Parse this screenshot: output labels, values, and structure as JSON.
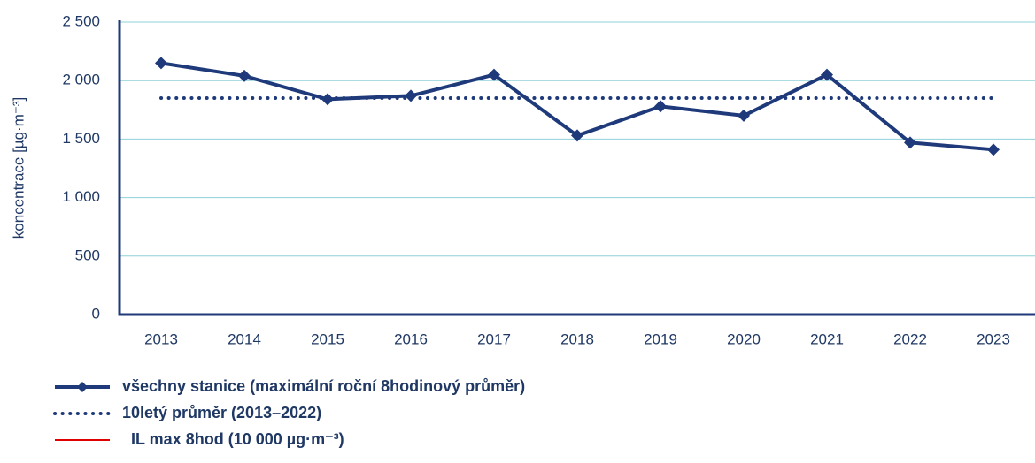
{
  "chart_data": {
    "type": "line",
    "y_label": "koncentrace [µg·m⁻³]",
    "categories": [
      "2013",
      "2014",
      "2015",
      "2016",
      "2017",
      "2018",
      "2019",
      "2020",
      "2021",
      "2022",
      "2023"
    ],
    "series": [
      {
        "name": "všechny stanice (maximální roční 8hodinový průměr)",
        "color": "#1f3a7a",
        "line_style": "solid",
        "marker": "diamond",
        "values": [
          2150,
          2040,
          1840,
          1870,
          2050,
          1530,
          1780,
          1700,
          2050,
          1470,
          1410
        ]
      },
      {
        "name": "10letý průměr (2013–2022)",
        "color": "#1f3a7a",
        "line_style": "dotted",
        "marker": "none",
        "values": [
          1850,
          1850,
          1850,
          1850,
          1850,
          1850,
          1850,
          1850,
          1850,
          1850,
          1850
        ]
      },
      {
        "name": "IL max 8hod (10 000 µg·m⁻³)",
        "color": "#e00000",
        "line_style": "solid",
        "marker": "none"
      }
    ],
    "ylim": [
      0,
      2500
    ],
    "yticks": [
      0,
      500,
      {
        "value": 1000,
        "label": "1 000"
      },
      {
        "value": 1500,
        "label": "1 500"
      },
      {
        "value": 2000,
        "label": "2 000"
      },
      {
        "value": 2500,
        "label": "2 500"
      }
    ],
    "grid": true
  }
}
